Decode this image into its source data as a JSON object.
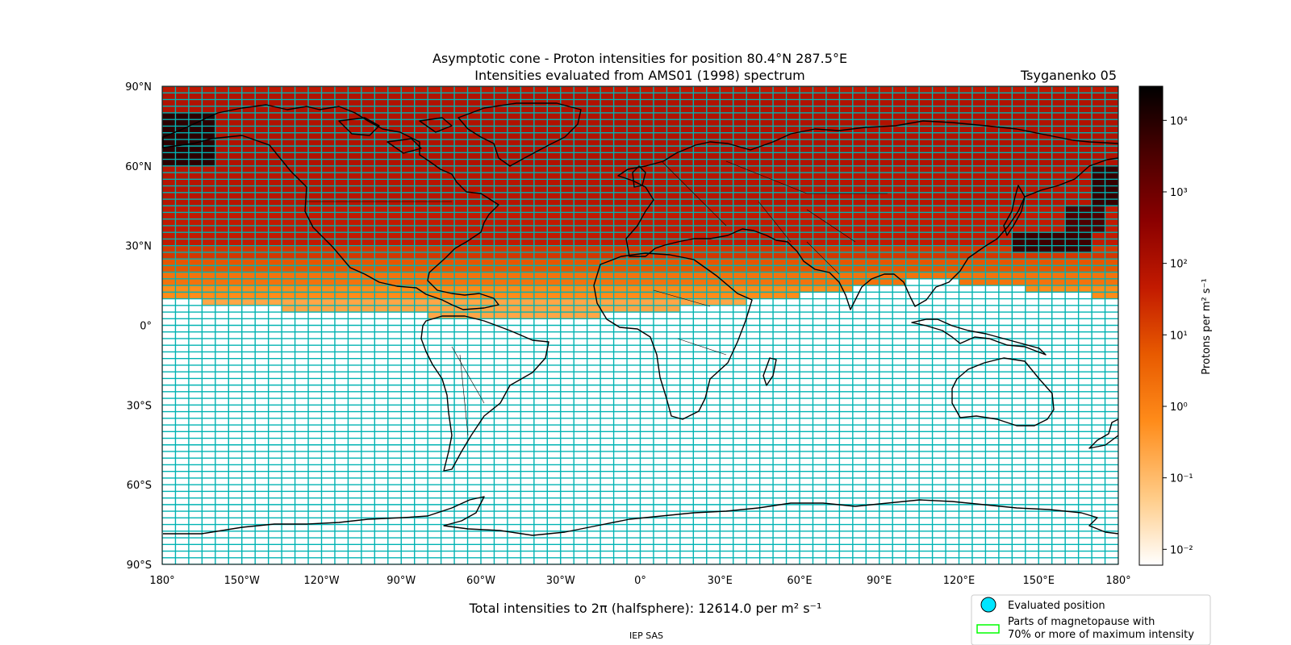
{
  "chart_data": {
    "type": "heatmap",
    "title": "Asymptotic cone - Proton intensities for position 80.4°N 287.5°E",
    "subtitle": "Intensities evaluated from AMS01 (1998) spectrum",
    "model_label": "Tsyganenko 05",
    "xlabel": "",
    "ylabel": "",
    "xlim": [
      -180,
      180
    ],
    "ylim": [
      -90,
      90
    ],
    "x_ticks": [
      {
        "value": -180,
        "label": "180°"
      },
      {
        "value": -150,
        "label": "150°W"
      },
      {
        "value": -120,
        "label": "120°W"
      },
      {
        "value": -90,
        "label": "90°W"
      },
      {
        "value": -60,
        "label": "60°W"
      },
      {
        "value": -30,
        "label": "30°W"
      },
      {
        "value": 0,
        "label": "0°"
      },
      {
        "value": 30,
        "label": "30°E"
      },
      {
        "value": 60,
        "label": "60°E"
      },
      {
        "value": 90,
        "label": "90°E"
      },
      {
        "value": 120,
        "label": "120°E"
      },
      {
        "value": 150,
        "label": "150°E"
      },
      {
        "value": 180,
        "label": "180°"
      }
    ],
    "y_ticks": [
      {
        "value": 90,
        "label": "90°N"
      },
      {
        "value": 60,
        "label": "60°N"
      },
      {
        "value": 30,
        "label": "30°N"
      },
      {
        "value": 0,
        "label": "0°"
      },
      {
        "value": -30,
        "label": "30°S"
      },
      {
        "value": -60,
        "label": "60°S"
      },
      {
        "value": -90,
        "label": "90°S"
      }
    ],
    "grid": {
      "lon_step": 5,
      "lat_step": 2.5,
      "edge_color": "#00b3b3"
    },
    "intensity_bands": [
      {
        "from_lat": 87.5,
        "to_lat": 90,
        "value": 50
      },
      {
        "from_lat": 60,
        "to_lat": 87.5,
        "value": 80
      },
      {
        "from_lat": 45,
        "to_lat": 60,
        "value": 60
      },
      {
        "from_lat": 30,
        "to_lat": 45,
        "value": 40
      },
      {
        "from_lat": 25,
        "to_lat": 30,
        "value": 15
      },
      {
        "from_lat": 20,
        "to_lat": 25,
        "value": 5
      },
      {
        "from_lat": 15,
        "to_lat": 20,
        "value": 1.5
      },
      {
        "from_lat": 10,
        "to_lat": 15,
        "value": 0.5
      },
      {
        "from_lat": 5,
        "to_lat": 10,
        "value": 0.2
      }
    ],
    "boundary_southern_edge": [
      {
        "lon": -180,
        "lat": 10
      },
      {
        "lon": -150,
        "lat": 7.5
      },
      {
        "lon": -120,
        "lat": 5
      },
      {
        "lon": -90,
        "lat": 5
      },
      {
        "lon": -75,
        "lat": 2.5
      },
      {
        "lon": -60,
        "lat": 2.5
      },
      {
        "lon": -30,
        "lat": 2.5
      },
      {
        "lon": 0,
        "lat": 5
      },
      {
        "lon": 30,
        "lat": 7.5
      },
      {
        "lon": 50,
        "lat": 10
      },
      {
        "lon": 70,
        "lat": 12.5
      },
      {
        "lon": 90,
        "lat": 15
      },
      {
        "lon": 110,
        "lat": 17.5
      },
      {
        "lon": 130,
        "lat": 15
      },
      {
        "lon": 160,
        "lat": 12.5
      },
      {
        "lon": 180,
        "lat": 10
      }
    ],
    "high_intensity_patches": [
      {
        "lon": [
          -180,
          -160
        ],
        "lat": [
          60,
          80
        ],
        "value": 8000
      },
      {
        "lon": [
          170,
          180
        ],
        "lat": [
          45,
          60
        ],
        "value": 6000
      },
      {
        "lon": [
          160,
          175
        ],
        "lat": [
          35,
          45
        ],
        "value": 3000
      },
      {
        "lon": [
          140,
          170
        ],
        "lat": [
          27.5,
          35
        ],
        "value": 5000
      }
    ],
    "colorbar": {
      "label": "Protons per m² s⁻¹",
      "scale": "log",
      "range": [
        0.006,
        30000
      ],
      "ticks": [
        {
          "value": 10000,
          "label": "10⁴"
        },
        {
          "value": 1000,
          "label": "10³"
        },
        {
          "value": 100,
          "label": "10²"
        },
        {
          "value": 10,
          "label": "10¹"
        },
        {
          "value": 1,
          "label": "10⁰"
        },
        {
          "value": 0.1,
          "label": "10⁻¹"
        },
        {
          "value": 0.01,
          "label": "10⁻²"
        }
      ],
      "colors": [
        "#ffffff",
        "#ffcc88",
        "#ff8c1a",
        "#e85a00",
        "#c21a00",
        "#8a0000",
        "#4a0000",
        "#000000"
      ]
    },
    "total_text": "Total intensities to 2π (halfsphere): 12614.0 per m² s⁻¹",
    "legend": {
      "position": "bottom-right",
      "items": [
        {
          "label": "Evaluated position",
          "marker": "circle",
          "color": "#00e5ff"
        },
        {
          "label_line1": "Parts of magnetopause with",
          "label_line2": "70% or more of maximum intensity",
          "marker": "rect",
          "color": "#00ff00"
        }
      ]
    },
    "footer": "IEP SAS"
  }
}
